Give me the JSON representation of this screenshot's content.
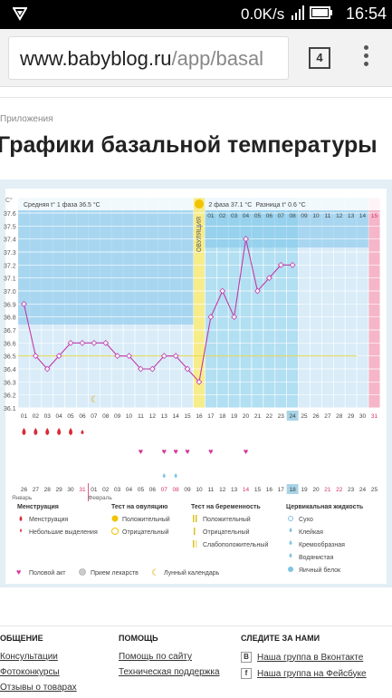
{
  "status_bar": {
    "speed": "0.0K/s",
    "time": "16:54"
  },
  "browser": {
    "url_host": "www.babyblog.ru",
    "url_path": "/app/basal",
    "tab_count": "4"
  },
  "breadcrumb": "Приложения",
  "page_title": "Графики базальной температуры",
  "chart": {
    "unit": "C°",
    "y_ticks": [
      "37.6",
      "37.5",
      "37.4",
      "37.3",
      "37.2",
      "37.1",
      "37.0",
      "36.9",
      "36.8",
      "36.7",
      "36.6",
      "36.5",
      "36.4",
      "36.3",
      "36.2",
      "36.1"
    ],
    "phase1_label": "Средняя t° 1 фаза",
    "phase1_value": "36.5 °C",
    "phase2_label": "2 фаза",
    "phase2_value": "37.1 °C",
    "diff_label": "Разница t°",
    "diff_value": "0.6 °C",
    "ovulation_label": "ОВУЛЯЦИЯ",
    "cycle_days": [
      "01",
      "02",
      "03",
      "04",
      "05",
      "06",
      "07",
      "08",
      "09",
      "10",
      "11",
      "12",
      "13",
      "14",
      "15",
      "16",
      "17",
      "18",
      "19",
      "20",
      "21",
      "22",
      "23",
      "24",
      "25",
      "26",
      "27",
      "28",
      "29",
      "30",
      "31"
    ],
    "top_days": [
      "01",
      "02",
      "03",
      "04",
      "05",
      "06",
      "07",
      "08",
      "09",
      "10",
      "11",
      "12",
      "13",
      "14",
      "15"
    ],
    "dates": [
      "26",
      "27",
      "28",
      "29",
      "30",
      "31",
      "01",
      "02",
      "03",
      "04",
      "05",
      "06",
      "07",
      "08",
      "09",
      "10",
      "11",
      "12",
      "13",
      "14",
      "15",
      "16",
      "17",
      "18",
      "19",
      "20",
      "21",
      "22",
      "23",
      "24",
      "25"
    ],
    "month1": "Январь",
    "month2": "Февраль",
    "today_index": 23
  },
  "chart_data": {
    "type": "line",
    "title": "Графики базальной температуры",
    "ylabel": "C°",
    "ylim": [
      36.1,
      37.6
    ],
    "x": [
      "01",
      "02",
      "03",
      "04",
      "05",
      "06",
      "07",
      "08",
      "09",
      "10",
      "11",
      "12",
      "13",
      "14",
      "15",
      "16",
      "17",
      "18",
      "19",
      "20",
      "21",
      "22",
      "23",
      "24"
    ],
    "series": [
      {
        "values": [
          36.9,
          36.5,
          36.4,
          36.5,
          36.6,
          36.6,
          36.6,
          36.6,
          36.5,
          36.5,
          36.4,
          36.4,
          36.5,
          36.5,
          36.4,
          36.3,
          36.8,
          37.0,
          36.8,
          37.4,
          37.0,
          37.1,
          37.2,
          37.2
        ]
      }
    ]
  },
  "legend": {
    "menstruation_title": "Менструация",
    "menstruation": "Менструация",
    "small_discharge": "Небольшие выделения",
    "ovulation_test_title": "Тест на овуляцию",
    "positive": "Положительный",
    "negative": "Отрицательный",
    "pregnancy_test_title": "Тест на беременность",
    "preg_positive": "Положительный",
    "preg_negative": "Отрицательный",
    "preg_weak": "Слабоположительный",
    "fluid_title": "Цервикальная жидкость",
    "dry": "Сухо",
    "sticky": "Клейкая",
    "creamy": "Кремообразная",
    "watery": "Водянистая",
    "egg_white": "Яичный белок",
    "intercourse": "Половой акт",
    "medication": "Прием лекарств",
    "lunar": "Лунный календарь"
  },
  "footer": {
    "col1_title": "ОБЩЕНИЕ",
    "col1_links": [
      "Консультации",
      "Фотоконкурсы",
      "Отзывы о товарах"
    ],
    "col2_title": "ПОМОЩЬ",
    "col2_links": [
      "Помощь по сайту",
      "Техническая поддержка"
    ],
    "col3_title": "СЛЕДИТЕ ЗА НАМИ",
    "col3_links": [
      "Наша группа в Вконтакте",
      "Наша группа на Фейсбуке"
    ]
  },
  "colors": {
    "phase1": "#d9ecf8",
    "phase2": "#b2dff2",
    "ovulation": "#f7ec8a",
    "line": "#c03aa8",
    "accent_pink": "#f5b6c9",
    "today": "#a8d4e8"
  }
}
